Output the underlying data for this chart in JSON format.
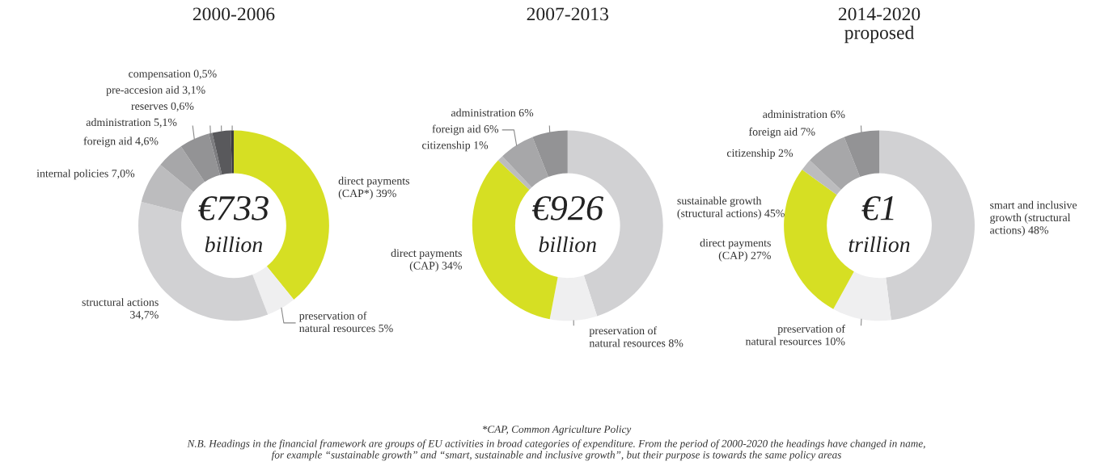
{
  "chart_data": [
    {
      "type": "donut",
      "title": "2000-2006",
      "categories": [
        "direct payments\n(CAP*) 39%",
        "preservation of\nnatural resources 5%",
        "structural actions\n34,7%",
        "internal policies 7,0%",
        "foreign aid 4,6%",
        "administration 5,1%",
        "reserves 0,6%",
        "pre-accesion aid 3,1%",
        "compensation 0,5%"
      ],
      "values": [
        39,
        5,
        34.7,
        7.0,
        4.6,
        5.1,
        0.6,
        3.1,
        0.5
      ],
      "colors": [
        "#d6df23",
        "#efeff0",
        "#d1d1d3",
        "#bcbcbe",
        "#a7a7a9",
        "#939395",
        "#7d7d80",
        "#59595c",
        "#3a3a3d"
      ],
      "annotations": [
        "€733",
        "billion",
        "*CAP, Common Agriculture Policy",
        "N.B. Headings in the financial framework are groups of EU activities in broad categories of expenditure. From the period of 2000-2020 the headings have changed in name,\nfor example “sustainable growth” and “smart, sustainable and inclusive growth”, but their purpose is towards the same policy areas"
      ]
    },
    {
      "type": "donut",
      "title": "2007-2013",
      "categories": [
        "sustainable growth\n(structural actions) 45%",
        "preservation of\nnatural resources 8%",
        "direct payments\n(CAP) 34%",
        "citizenship 1%",
        "foreign aid 6%",
        "administration 6%"
      ],
      "values": [
        45,
        8,
        34,
        1,
        6,
        6
      ],
      "colors": [
        "#d1d1d3",
        "#efeff0",
        "#d6df23",
        "#bcbcbe",
        "#a7a7a9",
        "#939395"
      ],
      "annotations": [
        "€926",
        "billion"
      ]
    },
    {
      "type": "donut",
      "title": "2014-2020\nproposed",
      "categories": [
        "smart and inclusive\ngrowth (structural\nactions) 48%",
        "preservation of\nnatural resources 10%",
        "direct payments\n(CAP) 27%",
        "citizenship 2%",
        "foreign aid 7%",
        "administration 6%"
      ],
      "values": [
        48,
        10,
        27,
        2,
        7,
        6
      ],
      "colors": [
        "#d1d1d3",
        "#efeff0",
        "#d6df23",
        "#bcbcbe",
        "#a7a7a9",
        "#939395"
      ],
      "annotations": [
        "€1",
        "trillion"
      ]
    }
  ]
}
